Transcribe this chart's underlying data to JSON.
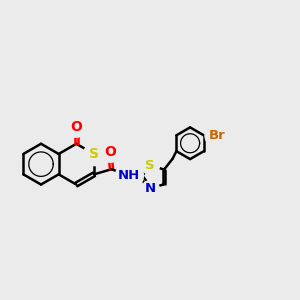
{
  "bg_color": "#ebebeb",
  "bond_color": "#000000",
  "bond_width": 1.8,
  "dbo": 0.07,
  "s_color": "#cccc00",
  "o_color": "#ff0000",
  "n_color": "#0000cc",
  "br_color": "#cc6600",
  "xlim": [
    0,
    10.5
  ],
  "ylim": [
    2.0,
    8.0
  ]
}
